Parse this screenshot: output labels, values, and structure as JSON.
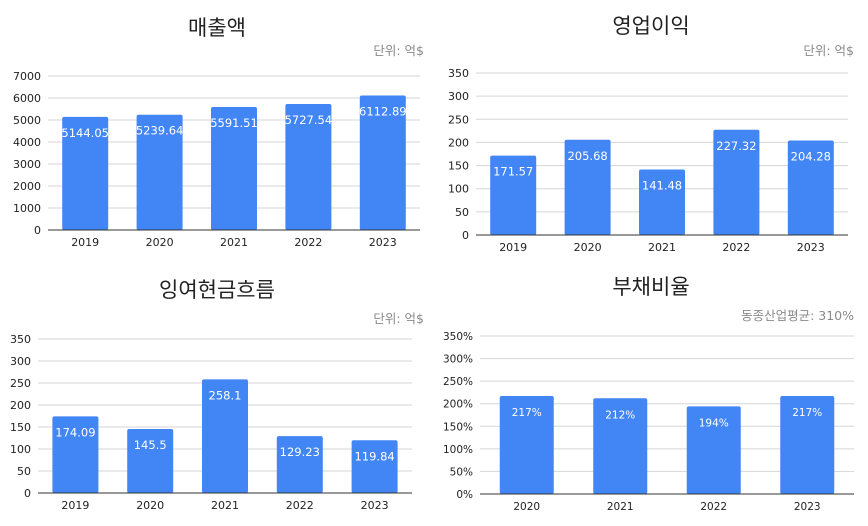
{
  "colors": {
    "bar": "#4285F4",
    "grid": "#d6d6d6",
    "axis": "#333333",
    "label_in_bar": "#ffffff"
  },
  "panels": {
    "revenue": {
      "title": "매출액",
      "unit": "단위: 억$"
    },
    "operating_profit": {
      "title": "영업이익",
      "unit": "단위: 억$"
    },
    "free_cash_flow": {
      "title": "잉여현금흐름",
      "unit": "단위: 억$"
    },
    "debt_ratio": {
      "title": "부채비율",
      "unit": "동종산업평균:  310%"
    }
  },
  "chart_data": [
    {
      "id": "revenue",
      "type": "bar",
      "title": "매출액",
      "categories": [
        "2019",
        "2020",
        "2021",
        "2022",
        "2023"
      ],
      "values": [
        5144.05,
        5239.64,
        5591.51,
        5727.54,
        6112.89
      ],
      "value_labels": [
        "5144.05",
        "5239.64",
        "5591.51",
        "5727.54",
        "6112.89"
      ],
      "ylim": [
        0,
        7000
      ],
      "yticks": [
        0,
        1000,
        2000,
        3000,
        4000,
        5000,
        6000,
        7000
      ],
      "ytick_labels": [
        "0",
        "1000",
        "2000",
        "3000",
        "4000",
        "5000",
        "6000",
        "7000"
      ],
      "grid": true,
      "legend": "none"
    },
    {
      "id": "operating_profit",
      "type": "bar",
      "title": "영업이익",
      "categories": [
        "2019",
        "2020",
        "2021",
        "2022",
        "2023"
      ],
      "values": [
        171.57,
        205.68,
        141.48,
        227.32,
        204.28
      ],
      "value_labels": [
        "171.57",
        "205.68",
        "141.48",
        "227.32",
        "204.28"
      ],
      "ylim": [
        0,
        350
      ],
      "yticks": [
        0,
        50,
        100,
        150,
        200,
        250,
        300,
        350
      ],
      "ytick_labels": [
        "0",
        "50",
        "100",
        "150",
        "200",
        "250",
        "300",
        "350"
      ],
      "grid": true,
      "legend": "none"
    },
    {
      "id": "free_cash_flow",
      "type": "bar",
      "title": "잉여현금흐름",
      "categories": [
        "2019",
        "2020",
        "2021",
        "2022",
        "2023"
      ],
      "values": [
        174.09,
        145.5,
        258.1,
        129.23,
        119.84
      ],
      "value_labels": [
        "174.09",
        "145.5",
        "258.1",
        "129.23",
        "119.84"
      ],
      "ylim": [
        0,
        350
      ],
      "yticks": [
        0,
        50,
        100,
        150,
        200,
        250,
        300,
        350
      ],
      "ytick_labels": [
        "0",
        "50",
        "100",
        "150",
        "200",
        "250",
        "300",
        "350"
      ],
      "grid": true,
      "legend": "none"
    },
    {
      "id": "debt_ratio",
      "type": "bar",
      "title": "부채비율",
      "categories": [
        "2020",
        "2021",
        "2022",
        "2023"
      ],
      "values": [
        217,
        212,
        194,
        217
      ],
      "value_labels": [
        "217%",
        "212%",
        "194%",
        "217%"
      ],
      "ylim": [
        0,
        350
      ],
      "yticks": [
        0,
        50,
        100,
        150,
        200,
        250,
        300,
        350
      ],
      "ytick_labels": [
        "0%",
        "50%",
        "100%",
        "150%",
        "200%",
        "250%",
        "300%",
        "350%"
      ],
      "grid": true,
      "legend": "none"
    }
  ]
}
